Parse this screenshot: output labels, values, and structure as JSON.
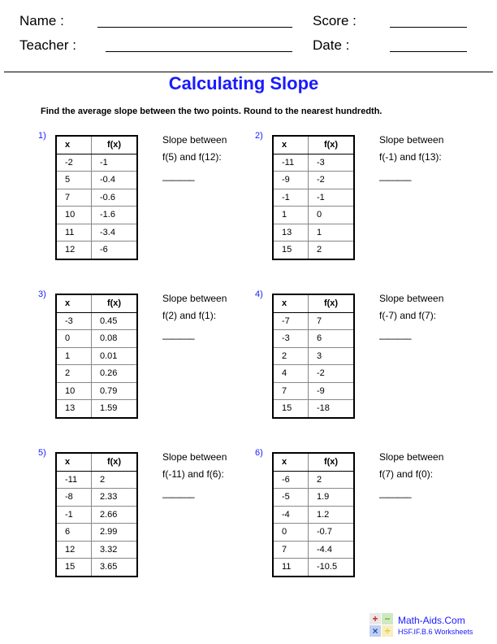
{
  "header": {
    "name_label": "Name :",
    "score_label": "Score :",
    "teacher_label": "Teacher :",
    "date_label": "Date :"
  },
  "title": "Calculating Slope",
  "instructions": "Find the average slope between the two points. Round to the nearest hundredth.",
  "table_headers": {
    "x": "x",
    "fx": "f(x)"
  },
  "problems": [
    {
      "number": "1)",
      "rows": [
        [
          "-2",
          "-1"
        ],
        [
          "5",
          "-0.4"
        ],
        [
          "7",
          "-0.6"
        ],
        [
          "10",
          "-1.6"
        ],
        [
          "11",
          "-3.4"
        ],
        [
          "12",
          "-6"
        ]
      ],
      "prompt": "Slope between",
      "points": "f(5) and f(12):",
      "blank": "———–"
    },
    {
      "number": "2)",
      "rows": [
        [
          "-11",
          "-3"
        ],
        [
          "-9",
          "-2"
        ],
        [
          "-1",
          "-1"
        ],
        [
          "1",
          "0"
        ],
        [
          "13",
          "1"
        ],
        [
          "15",
          "2"
        ]
      ],
      "prompt": "Slope between",
      "points": "f(-1) and f(13):",
      "blank": "———–"
    },
    {
      "number": "3)",
      "rows": [
        [
          "-3",
          "0.45"
        ],
        [
          "0",
          "0.08"
        ],
        [
          "1",
          "0.01"
        ],
        [
          "2",
          "0.26"
        ],
        [
          "10",
          "0.79"
        ],
        [
          "13",
          "1.59"
        ]
      ],
      "prompt": "Slope between",
      "points": "f(2) and f(1):",
      "blank": "———–"
    },
    {
      "number": "4)",
      "rows": [
        [
          "-7",
          "7"
        ],
        [
          "-3",
          "6"
        ],
        [
          "2",
          "3"
        ],
        [
          "4",
          "-2"
        ],
        [
          "7",
          "-9"
        ],
        [
          "15",
          "-18"
        ]
      ],
      "prompt": "Slope between",
      "points": "f(-7) and f(7):",
      "blank": "———–"
    },
    {
      "number": "5)",
      "rows": [
        [
          "-11",
          "2"
        ],
        [
          "-8",
          "2.33"
        ],
        [
          "-1",
          "2.66"
        ],
        [
          "6",
          "2.99"
        ],
        [
          "12",
          "3.32"
        ],
        [
          "15",
          "3.65"
        ]
      ],
      "prompt": "Slope between",
      "points": "f(-11) and f(6):",
      "blank": "———–"
    },
    {
      "number": "6)",
      "rows": [
        [
          "-6",
          "2"
        ],
        [
          "-5",
          "1.9"
        ],
        [
          "-4",
          "1.2"
        ],
        [
          "0",
          "-0.7"
        ],
        [
          "7",
          "-4.4"
        ],
        [
          "11",
          "-10.5"
        ]
      ],
      "prompt": "Slope between",
      "points": "f(7) and f(0):",
      "blank": "———–"
    }
  ],
  "footer": {
    "site": "Math-Aids.Com",
    "standard": "HSF.IF.B.6 Worksheets",
    "logo_symbols": [
      "+",
      "−",
      "×",
      "÷"
    ],
    "logo_colors": [
      "#d42020",
      "#60b040",
      "#2050c0",
      "#e8c020"
    ]
  },
  "colors": {
    "accent": "#1a1aff"
  }
}
